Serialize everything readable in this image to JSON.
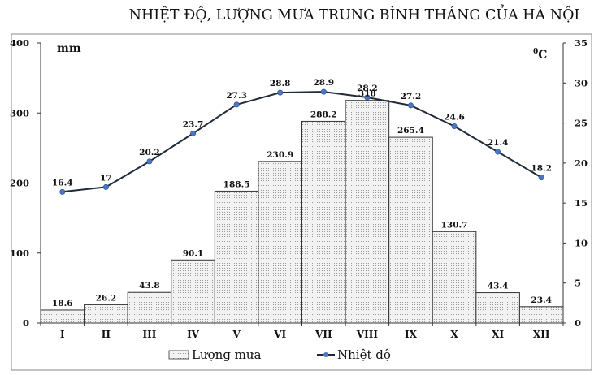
{
  "chart_data": {
    "type": "bar",
    "title": "NHIỆT ĐỘ, LƯỢNG MƯA TRUNG BÌNH THÁNG CỦA HÀ NỘI",
    "left_axis_unit": "mm",
    "right_axis_unit_sup": "0",
    "right_axis_unit": "C",
    "categories": [
      "I",
      "II",
      "III",
      "IV",
      "V",
      "VI",
      "VII",
      "VIII",
      "IX",
      "X",
      "XI",
      "XII"
    ],
    "left_ylim": [
      0,
      400
    ],
    "left_ticks": [
      "0",
      "100",
      "200",
      "300",
      "400"
    ],
    "right_ylim": [
      0,
      35
    ],
    "right_ticks": [
      "0",
      "5",
      "10",
      "15",
      "20",
      "25",
      "30",
      "35"
    ],
    "series": [
      {
        "name": "Lượng mưa",
        "type": "bar",
        "axis": "left",
        "values": [
          18.6,
          26.2,
          43.8,
          90.1,
          188.5,
          230.9,
          288.2,
          318,
          265.4,
          130.7,
          43.4,
          23.4
        ],
        "labels": [
          "18.6",
          "26.2",
          "43.8",
          "90.1",
          "188.5",
          "230.9",
          "288.2",
          "318",
          "265.4",
          "130.7",
          "43.4",
          "23.4"
        ]
      },
      {
        "name": "Nhiệt độ",
        "type": "line",
        "axis": "right",
        "values": [
          16.4,
          17,
          20.2,
          23.7,
          27.3,
          28.8,
          28.9,
          28.2,
          27.2,
          24.6,
          21.4,
          18.2
        ],
        "labels": [
          "16.4",
          "17",
          "20.2",
          "23.7",
          "27.3",
          "28.8",
          "28.9",
          "28.2",
          "27.2",
          "24.6",
          "21.4",
          "18.2"
        ]
      }
    ],
    "legend_position": "bottom",
    "grid": false,
    "colors": {
      "bar_fill": "#e6e6e6",
      "bar_stroke": "#333333",
      "line": "#1f2a3a",
      "marker": "#4a78c2"
    }
  }
}
